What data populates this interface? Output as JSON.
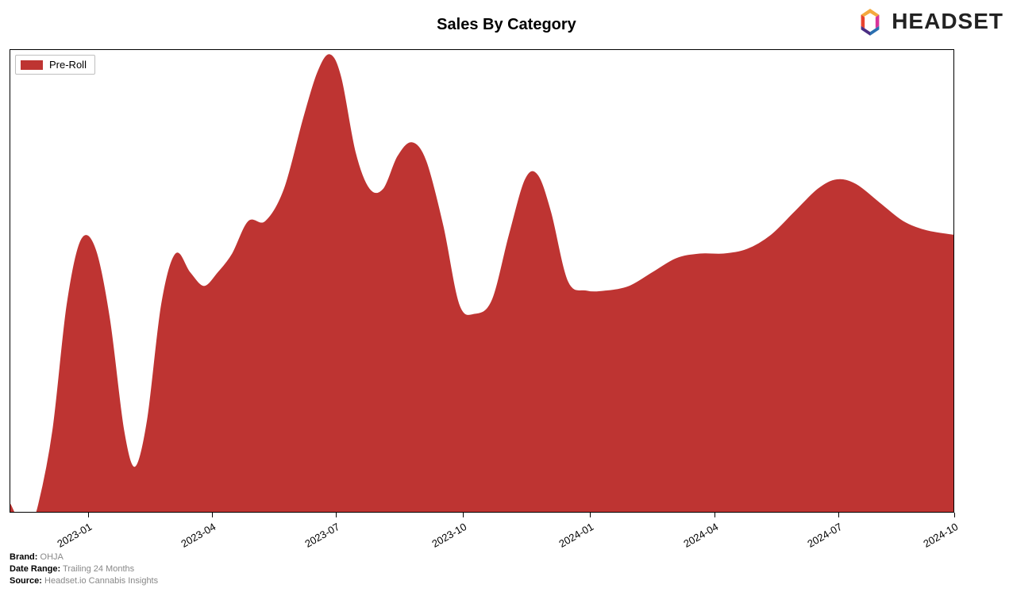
{
  "title": "Sales By Category",
  "logo_text": "HEADSET",
  "chart": {
    "type": "area",
    "series_label": "Pre-Roll",
    "series_color": "#be3432",
    "background_color": "#ffffff",
    "border_color": "#000000",
    "legend_border_color": "#bfbfbf",
    "x_ticks": [
      "2023-01",
      "2023-04",
      "2023-07",
      "2023-10",
      "2024-01",
      "2024-04",
      "2024-07",
      "2024-10"
    ],
    "x_tick_positions": [
      0.083,
      0.214,
      0.345,
      0.48,
      0.614,
      0.746,
      0.877,
      1.0
    ],
    "x_tick_rotation": 30,
    "ylim": [
      0,
      100
    ],
    "data": [
      {
        "x": 0.0,
        "y": 2
      },
      {
        "x": 0.01,
        "y": -2
      },
      {
        "x": 0.02,
        "y": -3
      },
      {
        "x": 0.03,
        "y": 2
      },
      {
        "x": 0.045,
        "y": 18
      },
      {
        "x": 0.06,
        "y": 45
      },
      {
        "x": 0.075,
        "y": 59
      },
      {
        "x": 0.09,
        "y": 57
      },
      {
        "x": 0.105,
        "y": 42
      },
      {
        "x": 0.12,
        "y": 18
      },
      {
        "x": 0.132,
        "y": 10
      },
      {
        "x": 0.145,
        "y": 20
      },
      {
        "x": 0.16,
        "y": 45
      },
      {
        "x": 0.175,
        "y": 56
      },
      {
        "x": 0.19,
        "y": 52
      },
      {
        "x": 0.205,
        "y": 49
      },
      {
        "x": 0.22,
        "y": 52
      },
      {
        "x": 0.235,
        "y": 56
      },
      {
        "x": 0.252,
        "y": 63
      },
      {
        "x": 0.27,
        "y": 63
      },
      {
        "x": 0.29,
        "y": 70
      },
      {
        "x": 0.31,
        "y": 85
      },
      {
        "x": 0.325,
        "y": 95
      },
      {
        "x": 0.338,
        "y": 99
      },
      {
        "x": 0.35,
        "y": 94
      },
      {
        "x": 0.365,
        "y": 78
      },
      {
        "x": 0.38,
        "y": 70
      },
      {
        "x": 0.395,
        "y": 70
      },
      {
        "x": 0.41,
        "y": 77
      },
      {
        "x": 0.425,
        "y": 80
      },
      {
        "x": 0.44,
        "y": 76
      },
      {
        "x": 0.458,
        "y": 62
      },
      {
        "x": 0.475,
        "y": 45
      },
      {
        "x": 0.492,
        "y": 43
      },
      {
        "x": 0.51,
        "y": 46
      },
      {
        "x": 0.528,
        "y": 60
      },
      {
        "x": 0.545,
        "y": 72
      },
      {
        "x": 0.558,
        "y": 73
      },
      {
        "x": 0.572,
        "y": 65
      },
      {
        "x": 0.59,
        "y": 50
      },
      {
        "x": 0.61,
        "y": 48
      },
      {
        "x": 0.63,
        "y": 48
      },
      {
        "x": 0.655,
        "y": 49
      },
      {
        "x": 0.68,
        "y": 52
      },
      {
        "x": 0.705,
        "y": 55
      },
      {
        "x": 0.73,
        "y": 56
      },
      {
        "x": 0.755,
        "y": 56
      },
      {
        "x": 0.78,
        "y": 57
      },
      {
        "x": 0.805,
        "y": 60
      },
      {
        "x": 0.83,
        "y": 65
      },
      {
        "x": 0.855,
        "y": 70
      },
      {
        "x": 0.875,
        "y": 72
      },
      {
        "x": 0.895,
        "y": 71
      },
      {
        "x": 0.92,
        "y": 67
      },
      {
        "x": 0.945,
        "y": 63
      },
      {
        "x": 0.97,
        "y": 61
      },
      {
        "x": 1.0,
        "y": 60
      }
    ]
  },
  "meta": {
    "brand_label": "Brand:",
    "brand_value": "OHJA",
    "range_label": "Date Range:",
    "range_value": "Trailing 24 Months",
    "source_label": "Source:",
    "source_value": "Headset.io Cannabis Insights"
  }
}
